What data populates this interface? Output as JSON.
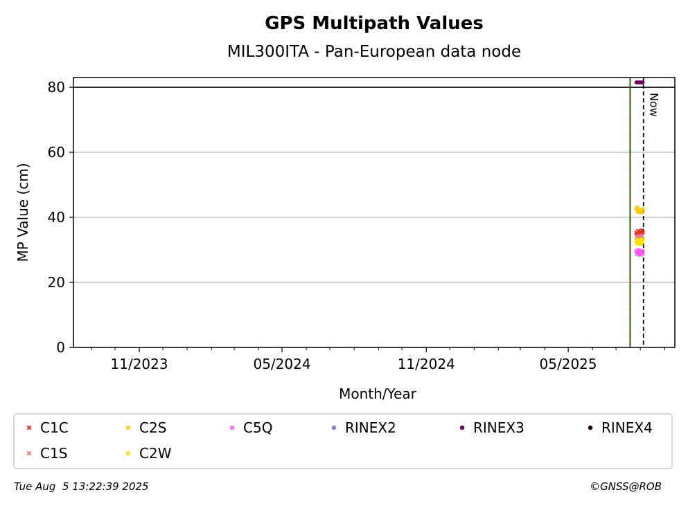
{
  "chart_data": {
    "type": "scatter",
    "title": "GPS Multipath Values",
    "subtitle": "MIL300ITA - Pan-European data node",
    "xlabel": "Month/Year",
    "ylabel": "MP Value (cm)",
    "ylim": [
      0,
      83
    ],
    "yticks": [
      0,
      20,
      40,
      60,
      80
    ],
    "xlim": [
      "2023-08-09",
      "2025-09-14"
    ],
    "xticks": [
      {
        "date": "2023-11-01",
        "label": "11/2023"
      },
      {
        "date": "2024-05-01",
        "label": "05/2024"
      },
      {
        "date": "2024-11-01",
        "label": "11/2024"
      },
      {
        "date": "2025-05-01",
        "label": "05/2025"
      }
    ],
    "grid": "horizontal",
    "threshold_line": 80,
    "event_line_date": "2025-07-19",
    "now_date": "2025-08-05",
    "now_label": "Now",
    "series": [
      {
        "name": "C1C",
        "marker": "x",
        "color": "#e8312a",
        "points": [
          [
            "2025-07-27",
            35.2
          ],
          [
            "2025-07-28",
            34.6
          ],
          [
            "2025-07-29",
            35.8
          ],
          [
            "2025-07-30",
            35.0
          ],
          [
            "2025-07-31",
            34.4
          ],
          [
            "2025-08-01",
            35.5
          ],
          [
            "2025-08-02",
            34.9
          ],
          [
            "2025-08-03",
            36.0
          ],
          [
            "2025-08-04",
            35.3
          ]
        ]
      },
      {
        "name": "C1S",
        "marker": "x",
        "color": "#f08080",
        "points": [
          [
            "2025-07-28",
            34.0
          ],
          [
            "2025-07-30",
            34.2
          ],
          [
            "2025-08-01",
            33.9
          ],
          [
            "2025-08-03",
            34.3
          ]
        ]
      },
      {
        "name": "C2S",
        "marker": "x",
        "color": "#ffc800",
        "points": [
          [
            "2025-07-27",
            42.5
          ],
          [
            "2025-07-28",
            43.0
          ],
          [
            "2025-07-29",
            42.0
          ],
          [
            "2025-07-30",
            41.6
          ],
          [
            "2025-07-31",
            41.8
          ],
          [
            "2025-08-01",
            42.2
          ],
          [
            "2025-08-02",
            41.5
          ],
          [
            "2025-08-03",
            41.9
          ],
          [
            "2025-08-04",
            42.5
          ]
        ]
      },
      {
        "name": "C2W",
        "marker": "x",
        "color": "#ffe000",
        "points": [
          [
            "2025-07-27",
            32.8
          ],
          [
            "2025-07-28",
            31.9
          ],
          [
            "2025-07-29",
            32.5
          ],
          [
            "2025-07-30",
            33.0
          ],
          [
            "2025-07-31",
            32.1
          ],
          [
            "2025-08-01",
            32.4
          ],
          [
            "2025-08-02",
            31.8
          ],
          [
            "2025-08-03",
            32.6
          ],
          [
            "2025-08-04",
            33.1
          ]
        ]
      },
      {
        "name": "C5Q",
        "marker": "x",
        "color": "#ff55ee",
        "points": [
          [
            "2025-07-27",
            29.5
          ],
          [
            "2025-07-28",
            28.8
          ],
          [
            "2025-07-29",
            29.9
          ],
          [
            "2025-07-30",
            29.2
          ],
          [
            "2025-07-31",
            29.6
          ],
          [
            "2025-08-01",
            28.5
          ],
          [
            "2025-08-02",
            29.3
          ],
          [
            "2025-08-03",
            29.7
          ],
          [
            "2025-08-04",
            28.9
          ]
        ]
      },
      {
        "name": "RINEX2",
        "marker": "dot",
        "color": "#8080c0",
        "points": []
      },
      {
        "name": "RINEX3",
        "marker": "dot",
        "color": "#6a005a",
        "points": [
          [
            "2025-07-27",
            81.5
          ],
          [
            "2025-07-28",
            81.5
          ],
          [
            "2025-07-29",
            81.5
          ],
          [
            "2025-07-30",
            81.5
          ],
          [
            "2025-07-31",
            81.5
          ],
          [
            "2025-08-01",
            81.5
          ],
          [
            "2025-08-02",
            81.5
          ],
          [
            "2025-08-03",
            81.5
          ],
          [
            "2025-08-04",
            81.5
          ]
        ]
      },
      {
        "name": "RINEX4",
        "marker": "dot",
        "color": "#200018",
        "points": []
      }
    ],
    "legend": {
      "placement": "bottom",
      "entries": [
        {
          "name": "C1C",
          "marker": "x",
          "color": "#e8312a"
        },
        {
          "name": "C2S",
          "marker": "x",
          "color": "#ffc800"
        },
        {
          "name": "C5Q",
          "marker": "x",
          "color": "#ff55ee"
        },
        {
          "name": "RINEX2",
          "marker": "dot",
          "color": "#8080c0"
        },
        {
          "name": "RINEX3",
          "marker": "dot",
          "color": "#6a005a"
        },
        {
          "name": "RINEX4",
          "marker": "dot",
          "color": "#200018"
        },
        {
          "name": "C1S",
          "marker": "x",
          "color": "#f08080"
        },
        {
          "name": "C2W",
          "marker": "x",
          "color": "#ffe000"
        }
      ]
    }
  },
  "footer": {
    "timestamp": "Tue Aug  5 13:22:39 2025",
    "credit": "©GNSS@ROB"
  }
}
